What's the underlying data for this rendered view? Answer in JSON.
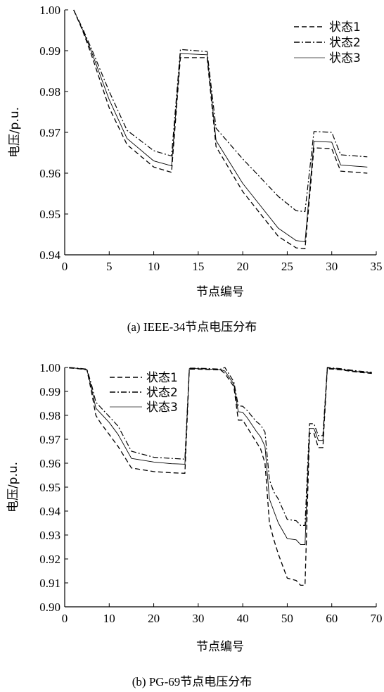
{
  "chart_data": [
    {
      "type": "line",
      "caption": "(a) IEEE-34节点电压分布",
      "xlabel": "节点编号",
      "ylabel": "电压/p.u.",
      "xlim": [
        0,
        35
      ],
      "ylim": [
        0.94,
        1.0
      ],
      "xticks": [
        0,
        5,
        10,
        15,
        20,
        25,
        30,
        35
      ],
      "yticks": [
        0.94,
        0.95,
        0.96,
        0.97,
        0.98,
        0.99,
        1.0
      ],
      "ytick_labels": [
        "0.94",
        "0.95",
        "0.96",
        "0.97",
        "0.98",
        "0.99",
        "1.00"
      ],
      "legend_position": "top-right",
      "grid": false,
      "series": [
        {
          "name": "状态1",
          "style": "dashed",
          "x": [
            1,
            2,
            3,
            5,
            7,
            10,
            12,
            13,
            16,
            17,
            20,
            24,
            26,
            27,
            28,
            30,
            31,
            34
          ],
          "y": [
            1.0,
            0.995,
            0.989,
            0.976,
            0.967,
            0.9615,
            0.9602,
            0.9883,
            0.9883,
            0.9665,
            0.9555,
            0.9445,
            0.9417,
            0.9415,
            0.9662,
            0.966,
            0.9605,
            0.96
          ]
        },
        {
          "name": "状态2",
          "style": "dashdot",
          "x": [
            1,
            2,
            3,
            5,
            7,
            10,
            12,
            13,
            16,
            17,
            20,
            24,
            26,
            27,
            28,
            30,
            31,
            34
          ],
          "y": [
            1.0,
            0.9955,
            0.9905,
            0.98,
            0.9705,
            0.9655,
            0.9642,
            0.9903,
            0.9898,
            0.971,
            0.9635,
            0.9543,
            0.9508,
            0.9506,
            0.9702,
            0.97,
            0.9645,
            0.964
          ]
        },
        {
          "name": "状态3",
          "style": "solid",
          "x": [
            1,
            2,
            3,
            5,
            7,
            10,
            12,
            13,
            16,
            17,
            20,
            24,
            26,
            27,
            28,
            30,
            31,
            34
          ],
          "y": [
            1.0,
            0.9952,
            0.9898,
            0.978,
            0.9685,
            0.963,
            0.9618,
            0.9893,
            0.989,
            0.968,
            0.9575,
            0.9465,
            0.9435,
            0.9432,
            0.9678,
            0.9676,
            0.962,
            0.9615
          ]
        }
      ]
    },
    {
      "type": "line",
      "caption": "(b) PG-69节点电压分布",
      "xlabel": "节点编号",
      "ylabel": "电压/p.u.",
      "xlim": [
        0,
        70
      ],
      "ylim": [
        0.9,
        1.0
      ],
      "xticks": [
        0,
        10,
        20,
        30,
        40,
        50,
        60,
        70
      ],
      "yticks": [
        0.9,
        0.91,
        0.92,
        0.93,
        0.94,
        0.95,
        0.96,
        0.97,
        0.98,
        0.99,
        1.0
      ],
      "ytick_labels": [
        "0.90",
        "0.91",
        "0.92",
        "0.93",
        "0.94",
        "0.95",
        "0.96",
        "0.97",
        "0.98",
        "0.99",
        "1.00"
      ],
      "legend_position": "top-left",
      "grid": false,
      "series": [
        {
          "name": "状态1",
          "style": "dashed",
          "x": [
            1,
            3,
            5,
            6,
            7,
            8,
            10,
            12,
            15,
            20,
            24,
            27,
            28,
            30,
            35,
            36,
            38,
            39,
            40,
            41,
            43,
            44,
            45,
            46,
            47,
            48,
            50,
            52,
            53,
            54,
            55,
            56,
            57,
            58,
            59,
            62,
            66,
            69
          ],
          "y": [
            0.9998,
            0.9995,
            0.999,
            0.99,
            0.98,
            0.977,
            0.972,
            0.967,
            0.958,
            0.9565,
            0.956,
            0.9558,
            0.9993,
            0.9993,
            0.999,
            0.9975,
            0.992,
            0.978,
            0.978,
            0.975,
            0.969,
            0.966,
            0.96,
            0.935,
            0.928,
            0.922,
            0.912,
            0.911,
            0.909,
            0.909,
            0.9725,
            0.9725,
            0.9665,
            0.9665,
            0.9995,
            0.999,
            0.998,
            0.9975
          ]
        },
        {
          "name": "状态2",
          "style": "dashdot",
          "x": [
            1,
            3,
            5,
            6,
            7,
            8,
            10,
            12,
            15,
            20,
            24,
            27,
            28,
            30,
            35,
            36,
            38,
            39,
            40,
            41,
            43,
            44,
            45,
            46,
            47,
            48,
            50,
            52,
            53,
            54,
            55,
            56,
            57,
            58,
            59,
            62,
            66,
            69
          ],
          "y": [
            1.0,
            0.9997,
            0.9993,
            0.993,
            0.9855,
            0.9835,
            0.9795,
            0.9755,
            0.965,
            0.9625,
            0.962,
            0.9617,
            0.9997,
            0.9997,
            0.9993,
            1.0,
            0.994,
            0.984,
            0.9838,
            0.982,
            0.9775,
            0.976,
            0.973,
            0.953,
            0.948,
            0.945,
            0.9365,
            0.936,
            0.934,
            0.934,
            0.9765,
            0.9765,
            0.9715,
            0.9715,
            1.0,
            0.9995,
            0.9985,
            0.998
          ]
        },
        {
          "name": "状态3",
          "style": "solid",
          "x": [
            1,
            3,
            5,
            6,
            7,
            8,
            10,
            12,
            15,
            20,
            24,
            27,
            28,
            30,
            35,
            36,
            38,
            39,
            40,
            41,
            43,
            44,
            45,
            46,
            47,
            48,
            50,
            52,
            53,
            54,
            55,
            56,
            57,
            58,
            59,
            62,
            66,
            69
          ],
          "y": [
            0.9999,
            0.9996,
            0.9991,
            0.9915,
            0.983,
            0.981,
            0.977,
            0.972,
            0.962,
            0.9605,
            0.9598,
            0.9596,
            0.9995,
            0.9995,
            0.9991,
            0.9985,
            0.993,
            0.9815,
            0.9813,
            0.979,
            0.9735,
            0.971,
            0.967,
            0.945,
            0.94,
            0.935,
            0.9285,
            0.928,
            0.926,
            0.926,
            0.9745,
            0.9745,
            0.9695,
            0.9695,
            0.9998,
            0.9992,
            0.9982,
            0.9978
          ]
        }
      ]
    }
  ]
}
